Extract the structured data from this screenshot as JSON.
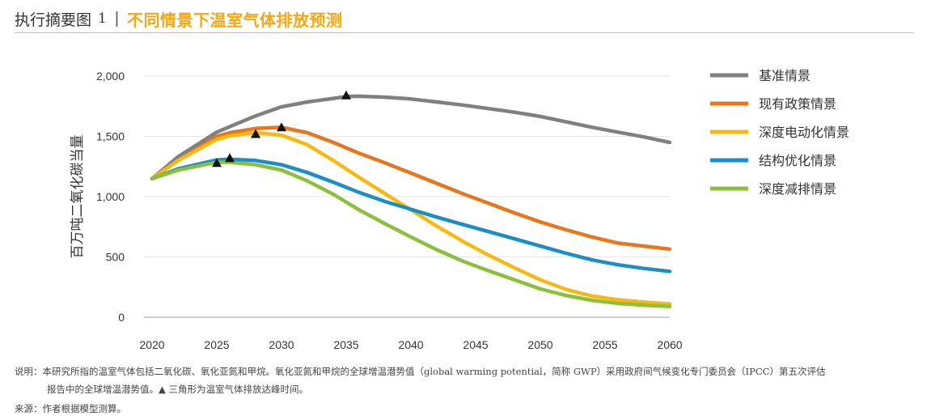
{
  "header": {
    "label": "执行摘要图",
    "number": "1",
    "separator": "|",
    "title": "不同情景下温室气体排放预测"
  },
  "colors": {
    "accent": "#f3a712",
    "axis": "#9a9a9a",
    "grid": "#e6e6e6",
    "text": "#333333",
    "marker": "#111111"
  },
  "chart_data": {
    "type": "line",
    "title": "不同情景下温室气体排放预测",
    "ylabel": "百万吨二氧化碳当量",
    "xlabel": "",
    "xlim": [
      2020,
      2060
    ],
    "ylim": [
      0,
      2000
    ],
    "x_ticks": [
      2020,
      2025,
      2030,
      2035,
      2040,
      2045,
      2050,
      2055,
      2060
    ],
    "x_tick_labels": [
      "2020",
      "2025",
      "2030",
      "2035",
      "2040",
      "2045",
      "2050",
      "2055",
      "2060"
    ],
    "y_ticks": [
      0,
      500,
      1000,
      1500,
      2000
    ],
    "y_tick_labels": [
      "0",
      "500",
      "1,000",
      "1,500",
      "2,000"
    ],
    "grid": "horizontal",
    "legend_position": "right",
    "series": [
      {
        "name": "基准情景",
        "color": "#808080",
        "x": [
          2020,
          2022,
          2025,
          2026,
          2028,
          2030,
          2032,
          2034,
          2035,
          2036,
          2038,
          2040,
          2042,
          2044,
          2046,
          2048,
          2050,
          2052,
          2054,
          2056,
          2058,
          2060
        ],
        "y": [
          1150,
          1330,
          1535,
          1580,
          1670,
          1745,
          1785,
          1815,
          1830,
          1833,
          1825,
          1810,
          1785,
          1760,
          1730,
          1700,
          1665,
          1620,
          1575,
          1535,
          1495,
          1450
        ]
      },
      {
        "name": "现有政策情景",
        "color": "#e8761d",
        "x": [
          2020,
          2022,
          2025,
          2026,
          2028,
          2030,
          2032,
          2034,
          2036,
          2038,
          2040,
          2042,
          2044,
          2046,
          2048,
          2050,
          2052,
          2054,
          2056,
          2058,
          2060
        ],
        "y": [
          1150,
          1300,
          1500,
          1530,
          1565,
          1575,
          1530,
          1450,
          1360,
          1280,
          1195,
          1110,
          1025,
          945,
          865,
          790,
          725,
          665,
          615,
          590,
          565
        ]
      },
      {
        "name": "深度电动化情景",
        "color": "#f5b90f",
        "x": [
          2020,
          2022,
          2025,
          2026,
          2028,
          2030,
          2032,
          2034,
          2036,
          2038,
          2040,
          2042,
          2044,
          2046,
          2048,
          2050,
          2052,
          2054,
          2056,
          2058,
          2060
        ],
        "y": [
          1150,
          1300,
          1475,
          1505,
          1530,
          1510,
          1430,
          1300,
          1160,
          1025,
          890,
          755,
          630,
          515,
          410,
          310,
          230,
          175,
          145,
          125,
          110
        ]
      },
      {
        "name": "结构优化情景",
        "color": "#1b8ec5",
        "x": [
          2020,
          2022,
          2025,
          2026,
          2028,
          2030,
          2032,
          2034,
          2036,
          2038,
          2040,
          2042,
          2044,
          2046,
          2048,
          2050,
          2052,
          2054,
          2056,
          2058,
          2060
        ],
        "y": [
          1150,
          1230,
          1305,
          1310,
          1300,
          1265,
          1200,
          1120,
          1035,
          960,
          895,
          830,
          770,
          710,
          650,
          590,
          530,
          475,
          435,
          405,
          380
        ]
      },
      {
        "name": "深度减排情景",
        "color": "#8bbf3c",
        "x": [
          2020,
          2022,
          2025,
          2026,
          2028,
          2030,
          2032,
          2034,
          2036,
          2038,
          2040,
          2042,
          2044,
          2046,
          2048,
          2050,
          2052,
          2054,
          2056,
          2058,
          2060
        ],
        "y": [
          1150,
          1220,
          1285,
          1285,
          1265,
          1220,
          1130,
          1020,
          890,
          775,
          665,
          560,
          465,
          385,
          310,
          235,
          180,
          140,
          115,
          100,
          90
        ]
      }
    ],
    "peak_markers": [
      {
        "series": "基准情景",
        "x": 2035,
        "y": 1840
      },
      {
        "series": "现有政策情景",
        "x": 2030,
        "y": 1575
      },
      {
        "series": "深度电动化情景",
        "x": 2028,
        "y": 1520
      },
      {
        "series": "结构优化情景",
        "x": 2026,
        "y": 1320
      },
      {
        "series": "深度减排情景",
        "x": 2025,
        "y": 1280
      }
    ]
  },
  "notes": {
    "line1": "说明：本研究所指的温室气体包括二氧化碳、氧化亚氮和甲烷。氧化亚氮和甲烷的全球增温潜势值（global warming potential，简称 GWP）采用政府间气候变化专门委员会（IPCC）第五次评估",
    "line2": "报告中的全球增温潜势值。▲ 三角形为温室气体排放达峰时间。",
    "line3": "来源：作者根据模型测算。"
  }
}
